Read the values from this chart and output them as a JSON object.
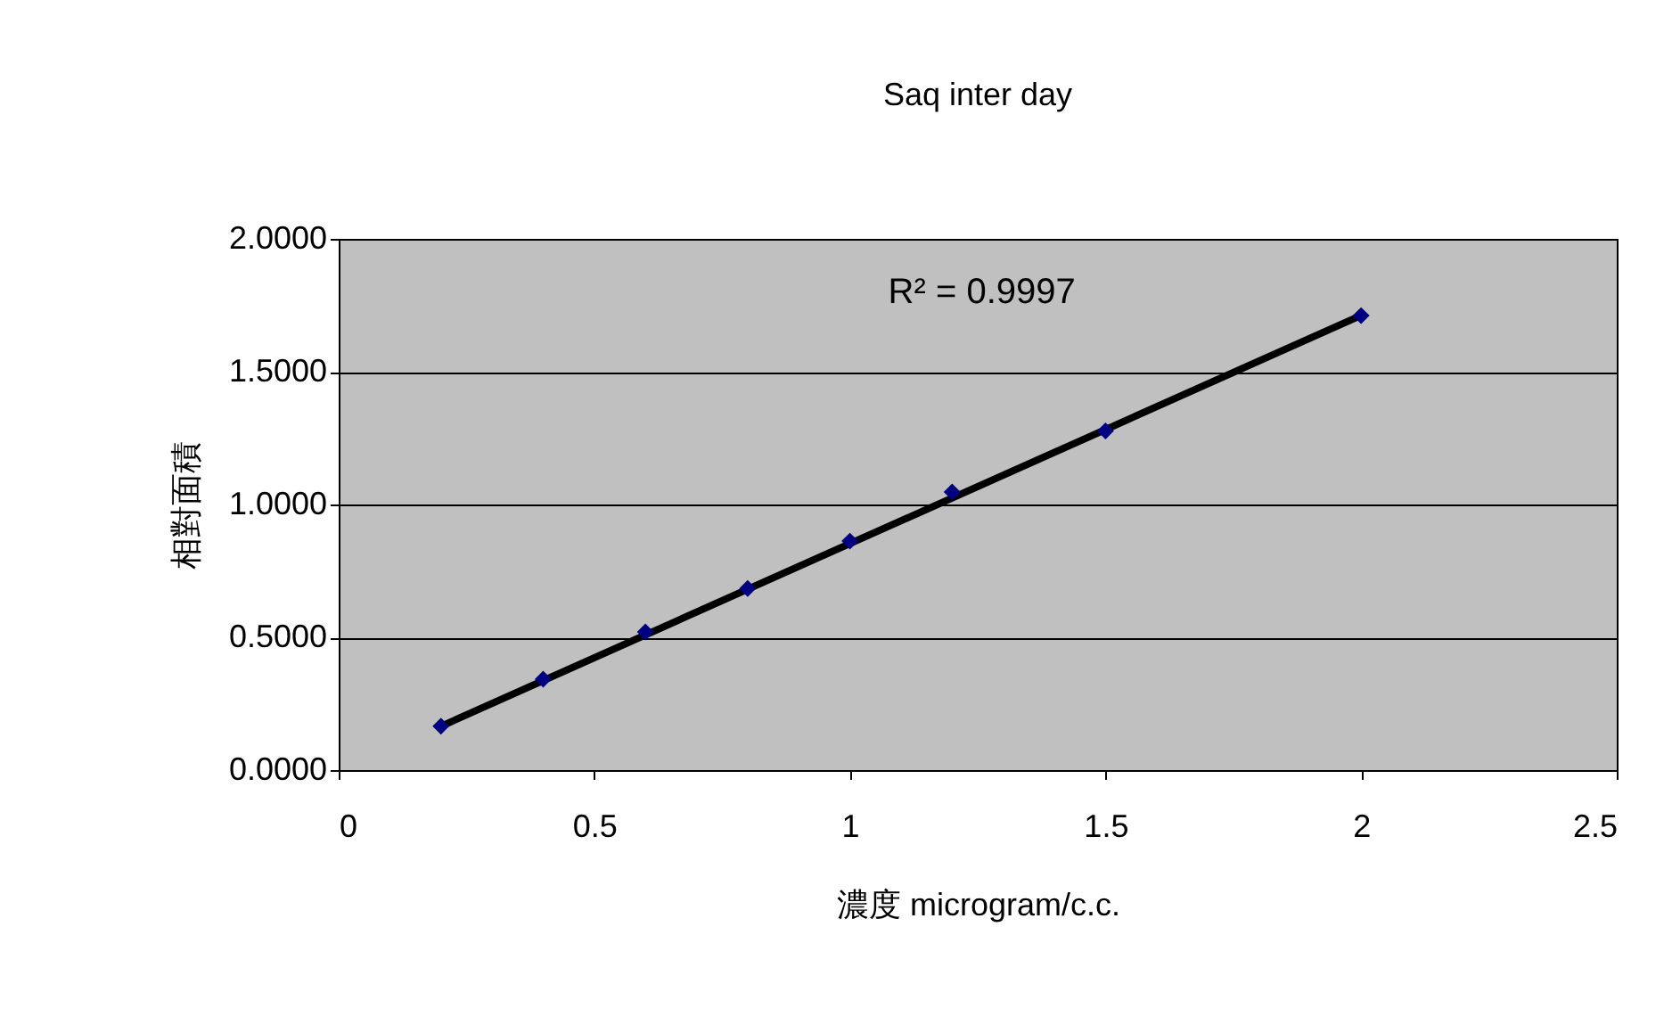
{
  "chart_data": {
    "type": "scatter",
    "title": "Saq inter day",
    "xlabel": "濃度 microgram/c.c.",
    "ylabel": "相對面積",
    "x": [
      0.2,
      0.4,
      0.6,
      0.8,
      1.0,
      1.2,
      1.5,
      2.0
    ],
    "series": [
      {
        "color": "#000080",
        "marker": "diamond",
        "values": [
          0.165,
          0.342,
          0.52,
          0.684,
          0.862,
          1.047,
          1.277,
          1.711
        ]
      },
      {
        "type": "line",
        "color": "#000000",
        "line_style": "solid",
        "x": [
          0.2,
          2.0
        ],
        "values": [
          0.165,
          1.712
        ]
      }
    ],
    "annotations": [
      "R² = 0.9997"
    ],
    "xlim": [
      0,
      2.5
    ],
    "xticks": [
      0,
      0.5,
      1,
      1.5,
      2,
      2.5
    ],
    "ylim": [
      0,
      2
    ],
    "yticks": [
      {
        "value": 0,
        "label": "0.0000"
      },
      {
        "value": 0.5,
        "label": "0.5000"
      },
      {
        "value": 1,
        "label": "1.0000"
      },
      {
        "value": 1.5,
        "label": "1.5000"
      },
      {
        "value": 2,
        "label": "2.0000"
      }
    ],
    "grid": "y"
  }
}
